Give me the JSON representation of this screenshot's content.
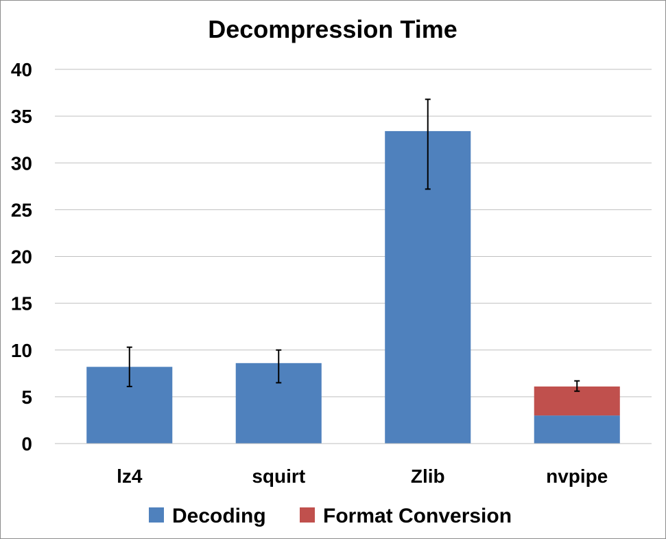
{
  "chart_data": {
    "type": "bar",
    "stacked": true,
    "title": "Decompression Time",
    "xlabel": "",
    "ylabel": "",
    "ylim": [
      0,
      40
    ],
    "yticks": [
      "0",
      "5",
      "10",
      "15",
      "20",
      "25",
      "30",
      "35",
      "40"
    ],
    "grid": true,
    "legend_position": "bottom",
    "categories": [
      "lz4",
      "squirt",
      "Zlib",
      "nvpipe"
    ],
    "series": [
      {
        "name": "Decoding",
        "color": "#4f81bd",
        "values": [
          8.2,
          8.6,
          33.4,
          3.0
        ]
      },
      {
        "name": "Format Conversion",
        "color": "#c0504d",
        "values": [
          0,
          0,
          0,
          3.1
        ]
      }
    ],
    "error_bars": [
      {
        "category": "lz4",
        "low": 6.1,
        "high": 10.3
      },
      {
        "category": "squirt",
        "low": 6.5,
        "high": 10.0
      },
      {
        "category": "Zlib",
        "low": 27.2,
        "high": 36.8
      },
      {
        "category": "nvpipe",
        "low": 5.6,
        "high": 6.7
      }
    ]
  }
}
